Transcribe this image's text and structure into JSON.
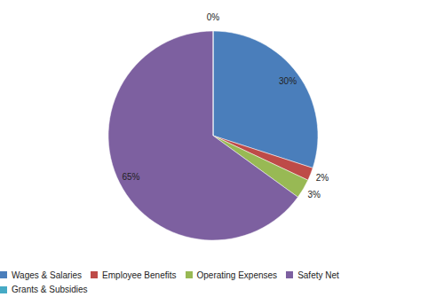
{
  "chart_data": {
    "type": "pie",
    "categories": [
      "Wages & Salaries",
      "Employee Benefits",
      "Operating Expenses",
      "Safety Net",
      "Grants & Subsidies"
    ],
    "values": [
      30,
      2,
      3,
      65,
      0
    ],
    "value_labels": [
      "30%",
      "2%",
      "3%",
      "65%",
      "0%"
    ],
    "colors": [
      "#4a7ebb",
      "#be4b48",
      "#98b954",
      "#7d60a0",
      "#46aac5"
    ],
    "data_labels": true,
    "legend": "bottom"
  }
}
